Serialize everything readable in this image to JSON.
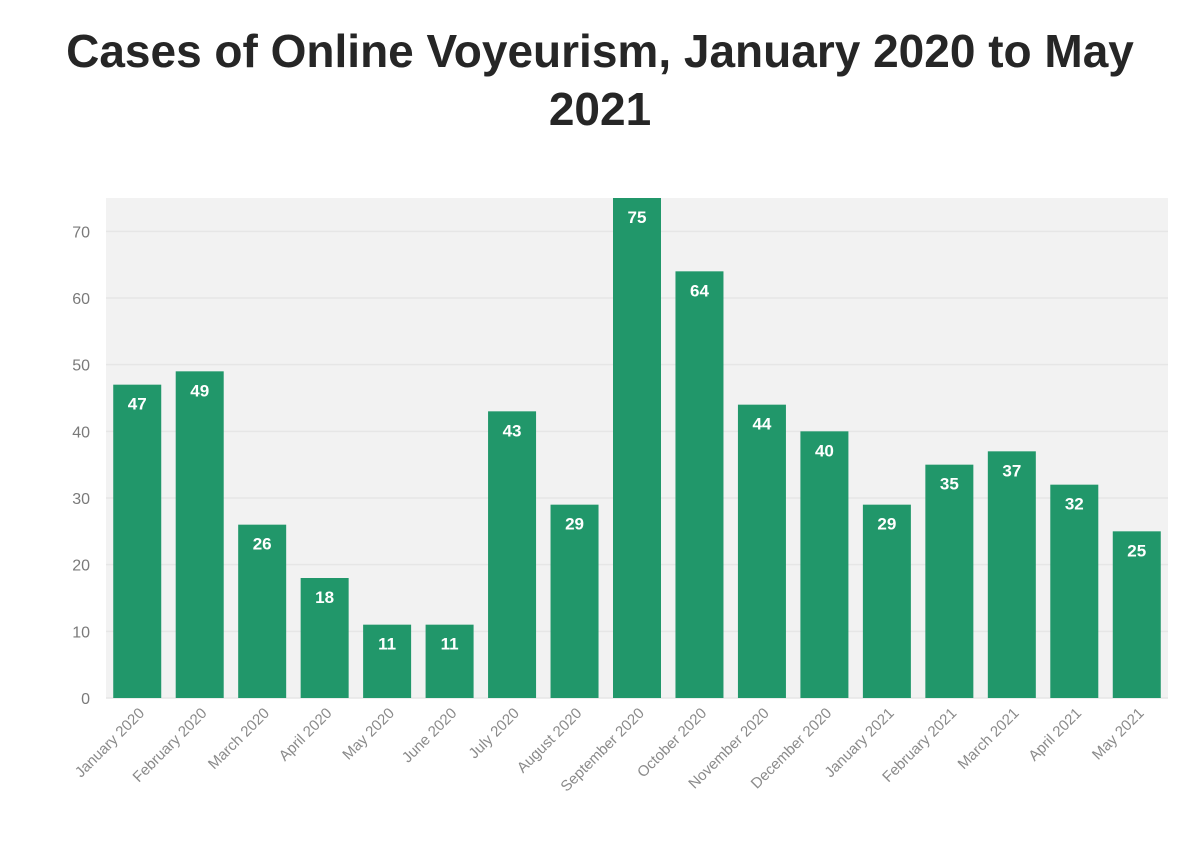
{
  "chart_data": {
    "type": "bar",
    "title": "Cases of Online Voyeurism, January 2020 to May 2021",
    "xlabel": "",
    "ylabel": "",
    "categories": [
      "January 2020",
      "February 2020",
      "March 2020",
      "April 2020",
      "May 2020",
      "June 2020",
      "July 2020",
      "August 2020",
      "September 2020",
      "October 2020",
      "November 2020",
      "December 2020",
      "January 2021",
      "February 2021",
      "March 2021",
      "April 2021",
      "May 2021"
    ],
    "values": [
      47,
      49,
      26,
      18,
      11,
      11,
      43,
      29,
      75,
      64,
      44,
      40,
      29,
      35,
      37,
      32,
      25
    ],
    "ylim": [
      0,
      75
    ],
    "yticks": [
      0,
      10,
      20,
      30,
      40,
      50,
      60,
      70
    ],
    "grid": true,
    "data_labels": true,
    "colors": {
      "bar": "#21976a",
      "plot_background": "#f2f2f2",
      "grid": "#e6e6e6",
      "title": "#262626"
    }
  }
}
